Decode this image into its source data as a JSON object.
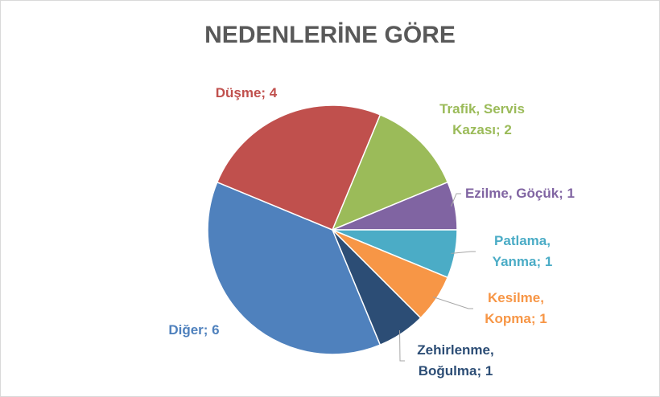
{
  "chart_data": {
    "type": "pie",
    "title": "NEDENLERİNE GÖRE",
    "values": [
      2,
      1,
      1,
      1,
      1,
      6,
      4
    ],
    "value_labels": [
      "Trafik, Servis Kazası; 2",
      "Ezilme, Göçük; 1",
      "Patlama, Yanma; 1",
      "Kesilme, Kopma; 1",
      "Zehirlenme, Boğulma; 1",
      "Diğer; 6",
      "Düşme; 4"
    ],
    "colors": [
      "#9bbb59",
      "#8064a2",
      "#4bacc6",
      "#f79646",
      "#2c4d75",
      "#4f81bd",
      "#c0504d"
    ]
  }
}
